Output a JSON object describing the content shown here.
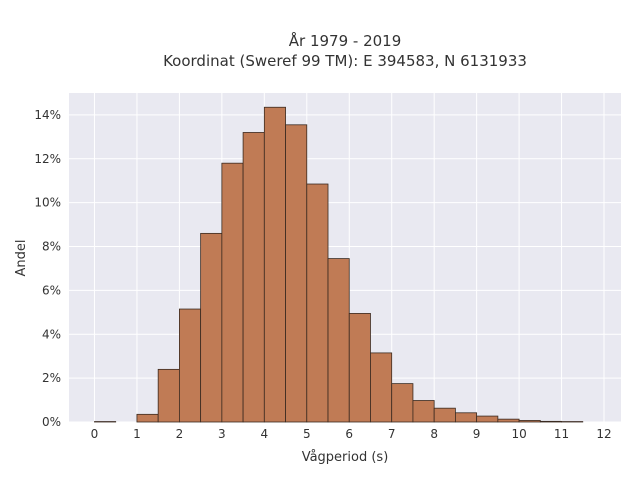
{
  "chart_data": {
    "type": "bar",
    "title_line1": "År 1979 - 2019",
    "title_line2": "Koordinat (Sweref 99 TM): E 394583, N 6131933",
    "xlabel": "Vågperiod (s)",
    "ylabel": "Andel",
    "xlim": [
      -0.6,
      12.4
    ],
    "ylim": [
      0,
      15.0
    ],
    "x_ticks": [
      0,
      1,
      2,
      3,
      4,
      5,
      6,
      7,
      8,
      9,
      10,
      11,
      12
    ],
    "y_ticks": [
      0,
      2,
      4,
      6,
      8,
      10,
      12,
      14
    ],
    "y_tick_labels": [
      "0%",
      "2%",
      "4%",
      "6%",
      "8%",
      "10%",
      "12%",
      "14%"
    ],
    "bin_width": 0.5,
    "bin_starts": [
      0,
      0.5,
      1,
      1.5,
      2,
      2.5,
      3,
      3.5,
      4,
      4.5,
      5,
      5.5,
      6,
      6.5,
      7,
      7.5,
      8,
      8.5,
      9,
      9.5,
      10,
      10.5,
      11,
      11.5
    ],
    "values": [
      0.02,
      0.0,
      0.35,
      2.4,
      5.15,
      8.6,
      11.8,
      13.2,
      14.35,
      13.55,
      10.85,
      7.45,
      4.95,
      3.15,
      1.75,
      0.98,
      0.63,
      0.42,
      0.27,
      0.13,
      0.07,
      0.03,
      0.02,
      0.0
    ],
    "grid": true,
    "bar_color": "#c07b55",
    "bar_edge_color": "#3a2a20",
    "background_color": "#e9e9f1",
    "grid_color": "#ffffff"
  }
}
